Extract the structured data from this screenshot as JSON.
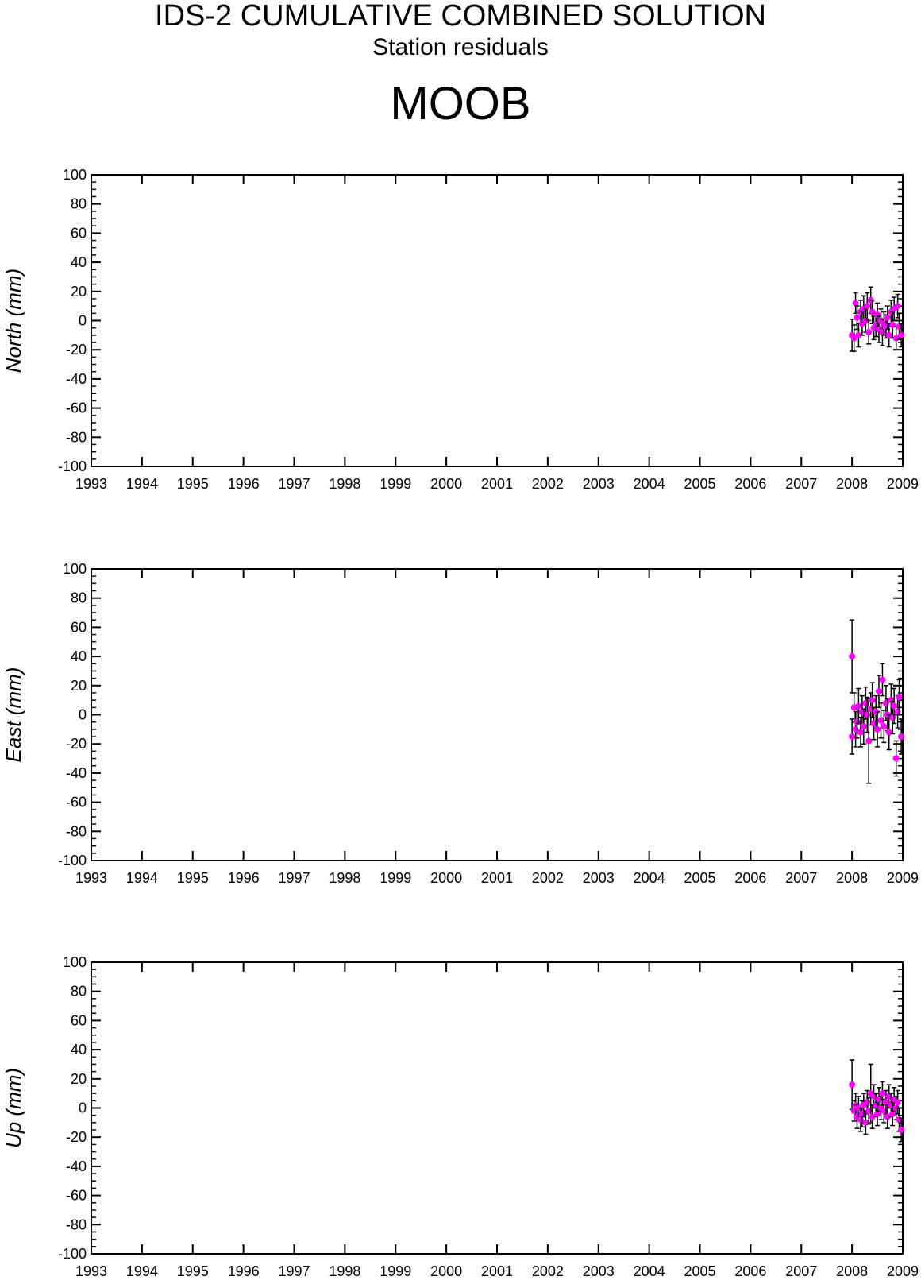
{
  "title": "IDS-2 CUMULATIVE COMBINED SOLUTION",
  "subtitle": "Station residuals",
  "station": "MOOB",
  "colors": {
    "marker": "#ff00ff",
    "errorbar": "#000000",
    "axis": "#000000"
  },
  "chart_data": [
    {
      "type": "scatter",
      "ylabel": "North (mm)",
      "xlim": [
        1993,
        2009
      ],
      "ylim": [
        -100,
        100
      ],
      "x_ticks": [
        "1993",
        "1994",
        "1995",
        "1996",
        "1997",
        "1998",
        "1999",
        "2000",
        "2001",
        "2002",
        "2003",
        "2004",
        "2005",
        "2006",
        "2007",
        "2008",
        "2009"
      ],
      "y_ticks": [
        "100",
        "80",
        "60",
        "40",
        "20",
        "0",
        "-20",
        "-40",
        "-60",
        "-80",
        "-100"
      ],
      "series": [
        {
          "x": [
            2008.0,
            2008.04,
            2008.07,
            2008.1,
            2008.13,
            2008.17,
            2008.2,
            2008.23,
            2008.27,
            2008.3,
            2008.33,
            2008.37,
            2008.4,
            2008.43,
            2008.47,
            2008.5,
            2008.53,
            2008.57,
            2008.6,
            2008.63,
            2008.67,
            2008.7,
            2008.73,
            2008.77,
            2008.8,
            2008.83,
            2008.87,
            2008.9,
            2008.93,
            2008.97
          ],
          "y": [
            -10,
            -12,
            12,
            2,
            -10,
            6,
            -2,
            8,
            0,
            10,
            -8,
            14,
            6,
            -5,
            -3,
            4,
            -6,
            0,
            -8,
            -2,
            -4,
            2,
            -10,
            6,
            -3,
            8,
            -12,
            10,
            -4,
            -10
          ],
          "err": [
            11,
            9,
            7,
            8,
            8,
            8,
            8,
            9,
            8,
            9,
            8,
            9,
            8,
            8,
            8,
            8,
            9,
            8,
            9,
            8,
            8,
            8,
            8,
            8,
            9,
            8,
            8,
            8,
            9,
            8
          ]
        }
      ]
    },
    {
      "type": "scatter",
      "ylabel": "East (mm)",
      "xlim": [
        1993,
        2009
      ],
      "ylim": [
        -100,
        100
      ],
      "x_ticks": [
        "1993",
        "1994",
        "1995",
        "1996",
        "1997",
        "1998",
        "1999",
        "2000",
        "2001",
        "2002",
        "2003",
        "2004",
        "2005",
        "2006",
        "2007",
        "2008",
        "2009"
      ],
      "y_ticks": [
        "100",
        "80",
        "60",
        "40",
        "20",
        "0",
        "-20",
        "-40",
        "-60",
        "-80",
        "-100"
      ],
      "series": [
        {
          "x": [
            2008.0,
            2008.0,
            2008.04,
            2008.07,
            2008.1,
            2008.13,
            2008.17,
            2008.2,
            2008.23,
            2008.27,
            2008.3,
            2008.33,
            2008.37,
            2008.4,
            2008.43,
            2008.47,
            2008.5,
            2008.53,
            2008.57,
            2008.6,
            2008.63,
            2008.67,
            2008.7,
            2008.73,
            2008.77,
            2008.8,
            2008.83,
            2008.87,
            2008.9,
            2008.93,
            2008.97
          ],
          "y": [
            40,
            -15,
            5,
            -10,
            -5,
            6,
            -12,
            2,
            -8,
            8,
            0,
            -18,
            4,
            10,
            -6,
            2,
            -10,
            16,
            -4,
            24,
            -8,
            8,
            0,
            -12,
            10,
            -2,
            6,
            -30,
            2,
            12,
            -15
          ],
          "err": [
            25,
            12,
            10,
            12,
            11,
            12,
            10,
            11,
            12,
            11,
            12,
            29,
            11,
            12,
            11,
            11,
            12,
            11,
            12,
            11,
            11,
            12,
            11,
            12,
            11,
            11,
            12,
            12,
            11,
            12,
            12
          ]
        }
      ]
    },
    {
      "type": "scatter",
      "ylabel": "Up (mm)",
      "xlim": [
        1993,
        2009
      ],
      "ylim": [
        -100,
        100
      ],
      "x_ticks": [
        "1993",
        "1994",
        "1995",
        "1996",
        "1997",
        "1998",
        "1999",
        "2000",
        "2001",
        "2002",
        "2003",
        "2004",
        "2005",
        "2006",
        "2007",
        "2008",
        "2009"
      ],
      "y_ticks": [
        "100",
        "80",
        "60",
        "40",
        "20",
        "0",
        "-20",
        "-40",
        "-60",
        "-80",
        "-100"
      ],
      "series": [
        {
          "x": [
            2008.0,
            2008.04,
            2008.07,
            2008.1,
            2008.13,
            2008.17,
            2008.2,
            2008.23,
            2008.27,
            2008.3,
            2008.33,
            2008.37,
            2008.4,
            2008.43,
            2008.47,
            2008.5,
            2008.53,
            2008.57,
            2008.6,
            2008.63,
            2008.67,
            2008.7,
            2008.73,
            2008.77,
            2008.8,
            2008.83,
            2008.87,
            2008.9,
            2008.93,
            2008.97
          ],
          "y": [
            16,
            -2,
            2,
            -6,
            0,
            -8,
            -4,
            2,
            -10,
            4,
            -2,
            10,
            -6,
            8,
            2,
            -4,
            6,
            0,
            10,
            -2,
            4,
            -6,
            8,
            2,
            -4,
            6,
            0,
            4,
            -8,
            -15
          ],
          "err": [
            17,
            7,
            8,
            8,
            8,
            8,
            9,
            8,
            8,
            8,
            9,
            20,
            8,
            8,
            8,
            8,
            8,
            8,
            8,
            8,
            8,
            8,
            8,
            8,
            8,
            8,
            8,
            8,
            8,
            8
          ]
        }
      ]
    }
  ]
}
